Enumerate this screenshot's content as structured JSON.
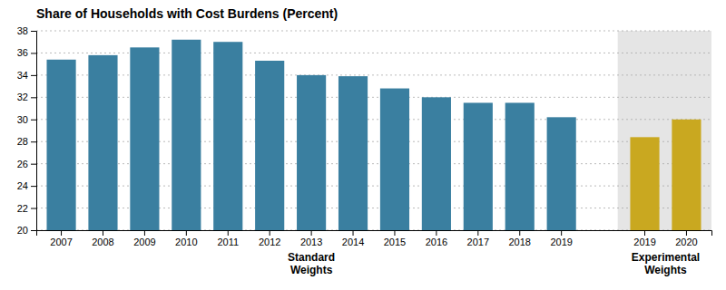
{
  "chart_data": {
    "type": "bar",
    "title": "Share of Households with Cost Burdens (Percent)",
    "categories": [
      "2007",
      "2008",
      "2009",
      "2010",
      "2011",
      "2012",
      "2013",
      "2014",
      "2015",
      "2016",
      "2017",
      "2018",
      "2019",
      "2019",
      "2020"
    ],
    "series": [
      {
        "name": "Standard\nWeights",
        "color": "#3a7fa0",
        "values": [
          35.4,
          35.8,
          36.5,
          37.2,
          37.0,
          35.3,
          34.0,
          33.9,
          32.8,
          32.0,
          31.5,
          31.5,
          30.2,
          null,
          null
        ]
      },
      {
        "name": "Experimental\nWeights",
        "color": "#c9a820",
        "values": [
          null,
          null,
          null,
          null,
          null,
          null,
          null,
          null,
          null,
          null,
          null,
          null,
          null,
          28.4,
          30.0
        ]
      }
    ],
    "ylim": [
      20,
      38
    ],
    "yticks": [
      20,
      22,
      24,
      26,
      28,
      30,
      32,
      34,
      36,
      38
    ],
    "grid": true
  }
}
